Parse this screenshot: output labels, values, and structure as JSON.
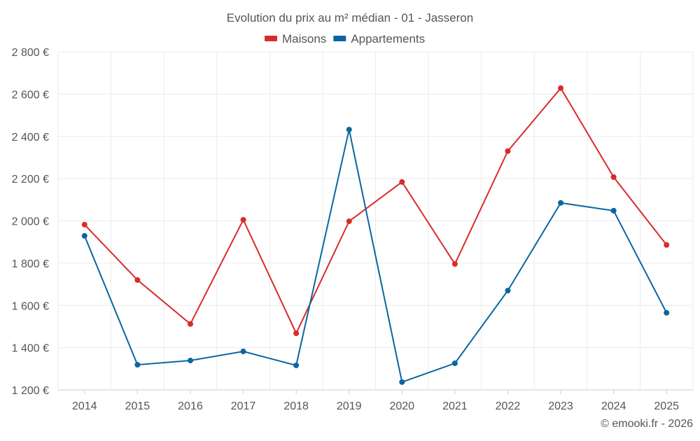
{
  "chart_data": {
    "type": "line",
    "title": "Evolution du prix au m² médian - 01 - Jasseron",
    "xlabel": "",
    "ylabel": "",
    "categories": [
      "2014",
      "2015",
      "2016",
      "2017",
      "2018",
      "2019",
      "2020",
      "2021",
      "2022",
      "2023",
      "2024",
      "2025"
    ],
    "ylim": [
      1200,
      2800
    ],
    "yticks": [
      1200,
      1400,
      1600,
      1800,
      2000,
      2200,
      2400,
      2600,
      2800
    ],
    "ytick_labels": [
      "1 200 €",
      "1 400 €",
      "1 600 €",
      "1 800 €",
      "2 000 €",
      "2 200 €",
      "2 400 €",
      "2 600 €",
      "2 800 €"
    ],
    "grid": true,
    "legend_position": "top-center",
    "series": [
      {
        "name": "Maisons",
        "color": "#d92b2b",
        "values": [
          1982,
          1720,
          1512,
          2005,
          1468,
          1998,
          2184,
          1796,
          2330,
          2628,
          2207,
          1886
        ]
      },
      {
        "name": "Appartements",
        "color": "#0a66a0",
        "values": [
          1929,
          1319,
          1339,
          1382,
          1316,
          2432,
          1237,
          1326,
          1670,
          2085,
          2048,
          1565
        ]
      }
    ],
    "credit": "© emooki.fr - 2026"
  }
}
